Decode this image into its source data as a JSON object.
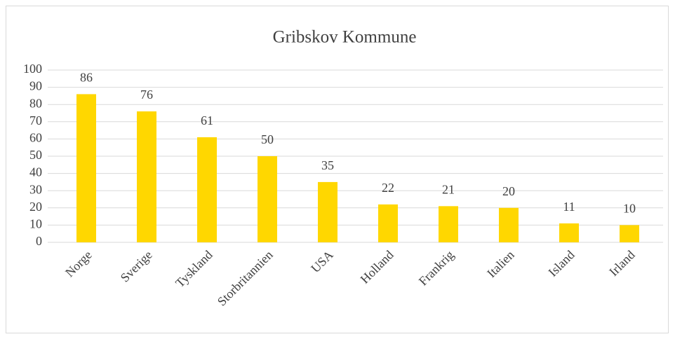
{
  "chart_data": {
    "type": "bar",
    "title": "Gribskov Kommune",
    "categories": [
      "Norge",
      "Sverige",
      "Tyskland",
      "Storbritannien",
      "USA",
      "Holland",
      "Frankrig",
      "Italien",
      "Island",
      "Irland"
    ],
    "values": [
      86,
      76,
      61,
      50,
      35,
      22,
      21,
      20,
      11,
      10
    ],
    "color": "#ffd700",
    "ylim": [
      0,
      100
    ],
    "yticks": [
      0,
      10,
      20,
      30,
      40,
      50,
      60,
      70,
      80,
      90,
      100
    ],
    "grid": true
  }
}
